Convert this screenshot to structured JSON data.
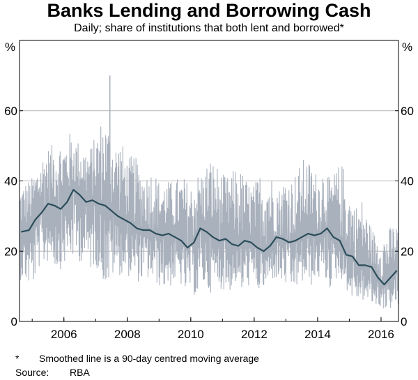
{
  "chart_data": {
    "type": "line",
    "title": "Banks Lending and Borrowing Cash",
    "subtitle": "Daily; share of institutions that both lent and borrowed*",
    "y_unit_left": "%",
    "y_unit_right": "%",
    "ylim": [
      0,
      80
    ],
    "y_ticks": [
      {
        "value": 0,
        "label": "0"
      },
      {
        "value": 20,
        "label": "20"
      },
      {
        "value": 40,
        "label": "40"
      },
      {
        "value": 60,
        "label": "60"
      }
    ],
    "xlim": [
      2004.6,
      2016.55
    ],
    "x_ticks": [
      {
        "value": 2006,
        "label": "2006"
      },
      {
        "value": 2008,
        "label": "2008"
      },
      {
        "value": 2010,
        "label": "2010"
      },
      {
        "value": 2012,
        "label": "2012"
      },
      {
        "value": 2014,
        "label": "2014"
      },
      {
        "value": 2016,
        "label": "2016"
      }
    ],
    "grid": true,
    "series": [
      {
        "role": "daily",
        "color": "#a9b1bd",
        "x": [
          2004.6,
          2004.8,
          2005.0,
          2005.2,
          2005.4,
          2005.6,
          2005.8,
          2006.0,
          2006.2,
          2006.4,
          2006.6,
          2006.8,
          2007.0,
          2007.2,
          2007.4,
          2007.6,
          2007.8,
          2008.0,
          2008.2,
          2008.4,
          2008.6,
          2008.8,
          2009.0,
          2009.2,
          2009.4,
          2009.6,
          2009.8,
          2010.0,
          2010.2,
          2010.4,
          2010.6,
          2010.8,
          2011.0,
          2011.2,
          2011.4,
          2011.6,
          2011.8,
          2012.0,
          2012.2,
          2012.4,
          2012.6,
          2012.8,
          2013.0,
          2013.2,
          2013.4,
          2013.6,
          2013.8,
          2014.0,
          2014.2,
          2014.4,
          2014.6,
          2014.8,
          2015.0,
          2015.2,
          2015.4,
          2015.6,
          2015.8,
          2016.0,
          2016.2,
          2016.4,
          2016.55
        ],
        "low": [
          12,
          11,
          9,
          15,
          16,
          18,
          14,
          16,
          18,
          17,
          17,
          14,
          16,
          12,
          9,
          14,
          13,
          13,
          12,
          11,
          12,
          11,
          10,
          9,
          10,
          12,
          8,
          9,
          6,
          10,
          8,
          10,
          9,
          8,
          11,
          8,
          10,
          10,
          8,
          10,
          12,
          11,
          10,
          8,
          10,
          11,
          10,
          12,
          12,
          9,
          12,
          12,
          7,
          6,
          6,
          5,
          4,
          4,
          3,
          4,
          4
        ],
        "high": [
          38,
          40,
          41,
          45,
          49,
          50,
          52,
          51,
          54,
          52,
          50,
          49,
          53,
          58,
          56,
          51,
          52,
          46,
          48,
          44,
          42,
          44,
          40,
          40,
          40,
          41,
          41,
          39,
          42,
          43,
          47,
          45,
          42,
          41,
          44,
          43,
          40,
          39,
          43,
          44,
          41,
          38,
          42,
          41,
          44,
          47,
          45,
          42,
          45,
          40,
          44,
          45,
          37,
          33,
          35,
          29,
          25,
          24,
          26,
          28,
          27
        ]
      },
      {
        "role": "smoothed",
        "color": "#2c4d5a",
        "x": [
          2004.65,
          2004.9,
          2005.1,
          2005.3,
          2005.5,
          2005.7,
          2005.9,
          2006.1,
          2006.3,
          2006.5,
          2006.7,
          2006.9,
          2007.1,
          2007.3,
          2007.5,
          2007.7,
          2007.9,
          2008.1,
          2008.3,
          2008.5,
          2008.7,
          2008.9,
          2009.1,
          2009.3,
          2009.5,
          2009.7,
          2009.9,
          2010.1,
          2010.3,
          2010.5,
          2010.7,
          2010.9,
          2011.1,
          2011.3,
          2011.5,
          2011.7,
          2011.9,
          2012.1,
          2012.3,
          2012.5,
          2012.7,
          2012.9,
          2013.1,
          2013.3,
          2013.5,
          2013.7,
          2013.9,
          2014.1,
          2014.3,
          2014.5,
          2014.7,
          2014.9,
          2015.1,
          2015.3,
          2015.5,
          2015.7,
          2015.9,
          2016.1,
          2016.3,
          2016.5
        ],
        "values": [
          25.5,
          26,
          29,
          31,
          33.5,
          33,
          32,
          34,
          37.5,
          36,
          34,
          34.5,
          33.5,
          33,
          31.5,
          30,
          29,
          28,
          26.5,
          26,
          26,
          25,
          24.5,
          25,
          24,
          23,
          21,
          22.5,
          26.5,
          25.5,
          24,
          23,
          23.5,
          22,
          21.5,
          23,
          22.5,
          21,
          20,
          21.5,
          24,
          23.5,
          22.5,
          23,
          24,
          25,
          24.5,
          25,
          26.5,
          24,
          23,
          19,
          18.5,
          16,
          16,
          15.5,
          12.5,
          10.5,
          12.5,
          14.5
        ]
      }
    ],
    "footnote_marker": "*",
    "footnote_text": "Smoothed line is a 90-day centred moving average",
    "source_label": "Source:",
    "source_value": "RBA"
  }
}
